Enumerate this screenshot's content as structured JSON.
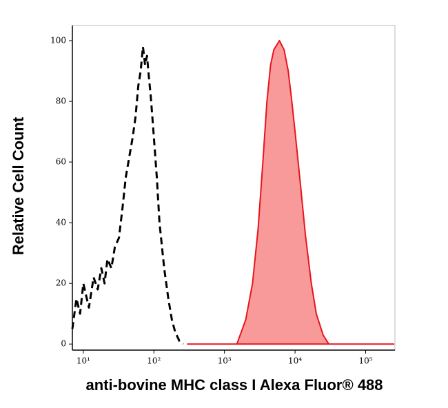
{
  "chart_data": {
    "type": "histogram-overlay",
    "x_label": "anti-bovine MHC class I Alexa Fluor® 488",
    "y_label": "Relative Cell Count",
    "xscale": "log",
    "xlim": [
      7,
      260000
    ],
    "ylim": [
      -2,
      105
    ],
    "xticks": [
      {
        "value": 10,
        "label": "10¹"
      },
      {
        "value": 100,
        "label": "10²"
      },
      {
        "value": 1000,
        "label": "10³"
      },
      {
        "value": 10000,
        "label": "10⁴"
      },
      {
        "value": 100000,
        "label": "10⁵"
      }
    ],
    "yticks": [
      0,
      20,
      40,
      60,
      80,
      100
    ],
    "series": [
      {
        "color": "#000000",
        "style": "dashed",
        "filled": false,
        "x": [
          7,
          8,
          9,
          10,
          12,
          14,
          16,
          18,
          20,
          22,
          25,
          28,
          32,
          36,
          40,
          45,
          50,
          55,
          60,
          65,
          70,
          75,
          80,
          85,
          90,
          95,
          100,
          110,
          120,
          140,
          160,
          180,
          200,
          230,
          260
        ],
        "values": [
          5,
          15,
          10,
          20,
          12,
          22,
          18,
          25,
          20,
          28,
          25,
          32,
          35,
          45,
          55,
          62,
          68,
          75,
          85,
          90,
          98,
          92,
          95,
          88,
          82,
          75,
          68,
          55,
          40,
          25,
          15,
          8,
          4,
          1,
          0
        ]
      },
      {
        "color": "#e8141b",
        "style": "solid",
        "filled": true,
        "fill": "#f99a9a",
        "x": [
          300,
          1500,
          2000,
          2500,
          3000,
          3500,
          4000,
          4500,
          5000,
          6000,
          7000,
          8000,
          9000,
          10000,
          12000,
          14000,
          17000,
          20000,
          25000,
          30000,
          250000
        ],
        "values": [
          0,
          0,
          8,
          20,
          38,
          60,
          80,
          92,
          97,
          100,
          97,
          90,
          80,
          70,
          52,
          36,
          20,
          10,
          3,
          0,
          0
        ]
      }
    ]
  }
}
